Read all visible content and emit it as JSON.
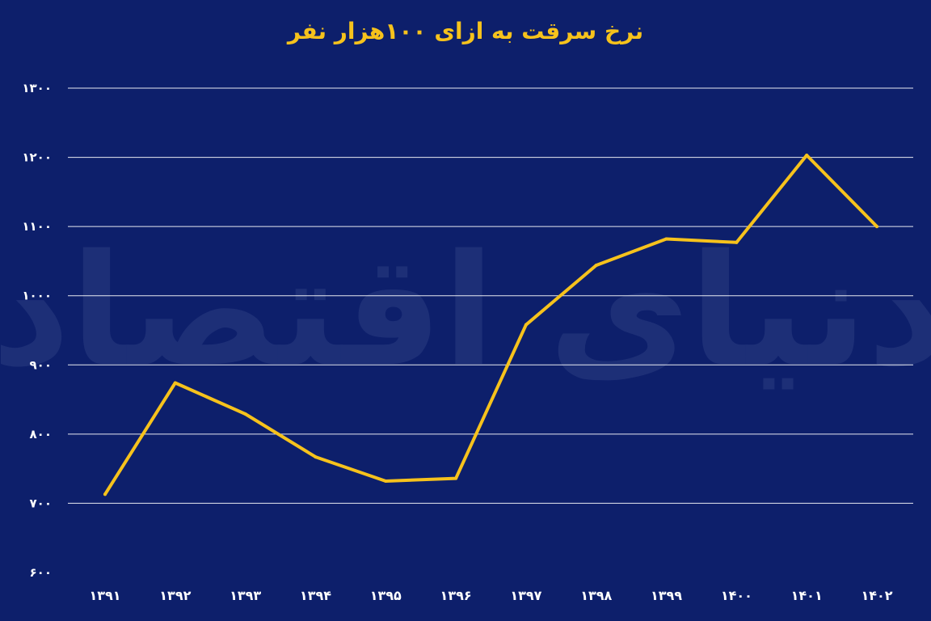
{
  "chart_data": {
    "type": "line",
    "title": "نرخ سرقت به ازای ۱۰۰هزار نفر",
    "xlabel": "",
    "ylabel": "",
    "categories": [
      "۱۳۹۱",
      "۱۳۹۲",
      "۱۳۹۳",
      "۱۳۹۴",
      "۱۳۹۵",
      "۱۳۹۶",
      "۱۳۹۷",
      "۱۳۹۸",
      "۱۳۹۹",
      "۱۴۰۰",
      "۱۴۰۱",
      "۱۴۰۲"
    ],
    "y_tick_labels": [
      "۶۰۰",
      "۷۰۰",
      "۸۰۰",
      "۹۰۰",
      "۱۰۰۰",
      "۱۱۰۰",
      "۱۲۰۰",
      "۱۳۰۰"
    ],
    "y_tick_values": [
      600,
      700,
      800,
      900,
      1000,
      1100,
      1200,
      1300
    ],
    "ylim": [
      600,
      1300
    ],
    "grid": true,
    "series": [
      {
        "values": [
          713,
          874,
          829,
          767,
          732,
          736,
          958,
          1044,
          1082,
          1077,
          1203,
          1100
        ]
      }
    ],
    "colors": {
      "background": "#0d1f6b",
      "line": "#f6c21c",
      "title": "#f6c21c",
      "grid": "#ffffff",
      "ticks": "#ffffff"
    }
  },
  "watermark": {
    "text": "دنیای اقتصاد"
  }
}
